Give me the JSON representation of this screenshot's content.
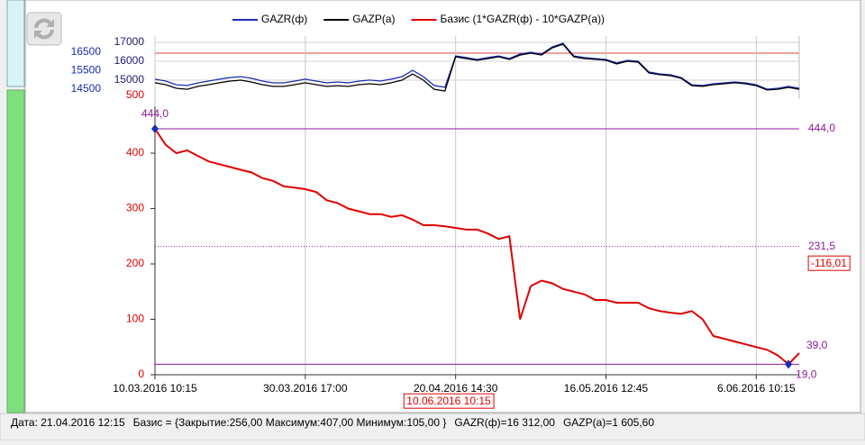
{
  "chart_data": [
    {
      "type": "line",
      "series": [
        {
          "name": "GAZR(ф)",
          "color": "#1a2bb5",
          "axis": "y2",
          "values": [
            15040,
            14940,
            14740,
            14700,
            14840,
            14940,
            15040,
            15130,
            15180,
            15090,
            14940,
            14840,
            14840,
            14940,
            15040,
            14940,
            14840,
            14890,
            14840,
            14940,
            14990,
            14940,
            15040,
            15180,
            15520,
            15180,
            14700,
            14600,
            16300,
            16210,
            16110,
            16210,
            16300,
            16160,
            16400,
            16500,
            16400,
            16790,
            16990,
            16300,
            16210,
            16160,
            16110,
            15920,
            16060,
            16010,
            15430,
            15330,
            15280,
            15130,
            14740,
            14700,
            14790,
            14840,
            14890,
            14840,
            14740,
            14500,
            14550,
            14650,
            14550
          ]
        },
        {
          "name": "GAZP(a)",
          "color": "#000000",
          "values": [
            14860,
            14760,
            14570,
            14520,
            14670,
            14760,
            14860,
            14950,
            15000,
            14900,
            14760,
            14670,
            14670,
            14760,
            14860,
            14760,
            14670,
            14710,
            14670,
            14760,
            14810,
            14760,
            14860,
            15000,
            15330,
            15000,
            14520,
            14430,
            16240,
            16140,
            16050,
            16140,
            16240,
            16100,
            16330,
            16430,
            16330,
            16710,
            16900,
            16240,
            16140,
            16100,
            16050,
            15860,
            16000,
            15950,
            15380,
            15290,
            15240,
            15100,
            14710,
            14670,
            14760,
            14810,
            14860,
            14810,
            14710,
            14480,
            14520,
            14620,
            14520
          ]
        }
      ],
      "ylim": [
        14000,
        17333
      ],
      "yticks": [
        15000,
        16000,
        17000
      ],
      "y2lim": [
        13963,
        17378
      ],
      "y2ticks": [
        14500,
        15500,
        16500
      ],
      "basis_ticks": [
        500
      ],
      "grid": true
    },
    {
      "type": "line",
      "categories": [
        "10.03.2016 10:15",
        null,
        null,
        null,
        null,
        null,
        null,
        null,
        null,
        null,
        null,
        null,
        null,
        null,
        "30.03.2016 17:00",
        null,
        null,
        null,
        null,
        null,
        null,
        null,
        null,
        null,
        null,
        null,
        null,
        null,
        "20.04.2016 14:30",
        null,
        null,
        null,
        null,
        null,
        null,
        null,
        null,
        null,
        null,
        null,
        null,
        null,
        "16.05.2016 12:45",
        null,
        null,
        null,
        null,
        null,
        null,
        null,
        null,
        null,
        null,
        null,
        null,
        null,
        "6.06.2016 10:15",
        null,
        null,
        null,
        null
      ],
      "series": [
        {
          "name": "Базис (1*GAZR(ф) - 10*GAZP(а))",
          "color": "#e00000",
          "values": [
            444,
            415,
            400,
            405,
            395,
            385,
            380,
            375,
            370,
            365,
            355,
            350,
            340,
            338,
            335,
            330,
            315,
            310,
            300,
            295,
            290,
            290,
            285,
            288,
            280,
            270,
            270,
            268,
            265,
            262,
            262,
            255,
            245,
            250,
            100,
            160,
            170,
            165,
            155,
            150,
            145,
            135,
            135,
            130,
            130,
            130,
            120,
            115,
            112,
            110,
            115,
            100,
            70,
            65,
            60,
            55,
            50,
            45,
            35,
            19,
            39
          ],
          "value_labels": [
            "444,0",
            null,
            null,
            null,
            null,
            null,
            null,
            null,
            null,
            null,
            null,
            null,
            null,
            null,
            null,
            null,
            null,
            null,
            null,
            null,
            null,
            null,
            null,
            null,
            null,
            null,
            null,
            null,
            null,
            null,
            null,
            null,
            null,
            null,
            null,
            null,
            null,
            null,
            null,
            null,
            null,
            null,
            null,
            null,
            null,
            null,
            null,
            null,
            null,
            null,
            null,
            null,
            null,
            null,
            null,
            null,
            null,
            null,
            null,
            "19,0",
            "39,0"
          ]
        }
      ],
      "ylim": [
        -6.5,
        484.6
      ],
      "yticks": [
        0,
        100,
        200,
        300,
        400
      ],
      "hlines": [
        {
          "value": 444,
          "label": "444,0",
          "style": "solid",
          "color": "#8b1a9b"
        },
        {
          "value": 231.5,
          "label": "231,5",
          "style": "dotted",
          "color": "#8b1a9b"
        },
        {
          "value": 19,
          "style": "solid",
          "color": "#8b1a9b"
        }
      ],
      "current_value_label": "-116,01",
      "cursor_label": "10.06.2016 10:15"
    }
  ],
  "status_bar": [
    "Дата: 21.04.2016 12:15",
    "Базис = {Закрытие:256,00 Максимум:407,00 Минимум:105,00 }",
    "GAZR(ф)=16 312,00",
    "GAZP(a)=1 605,60"
  ]
}
